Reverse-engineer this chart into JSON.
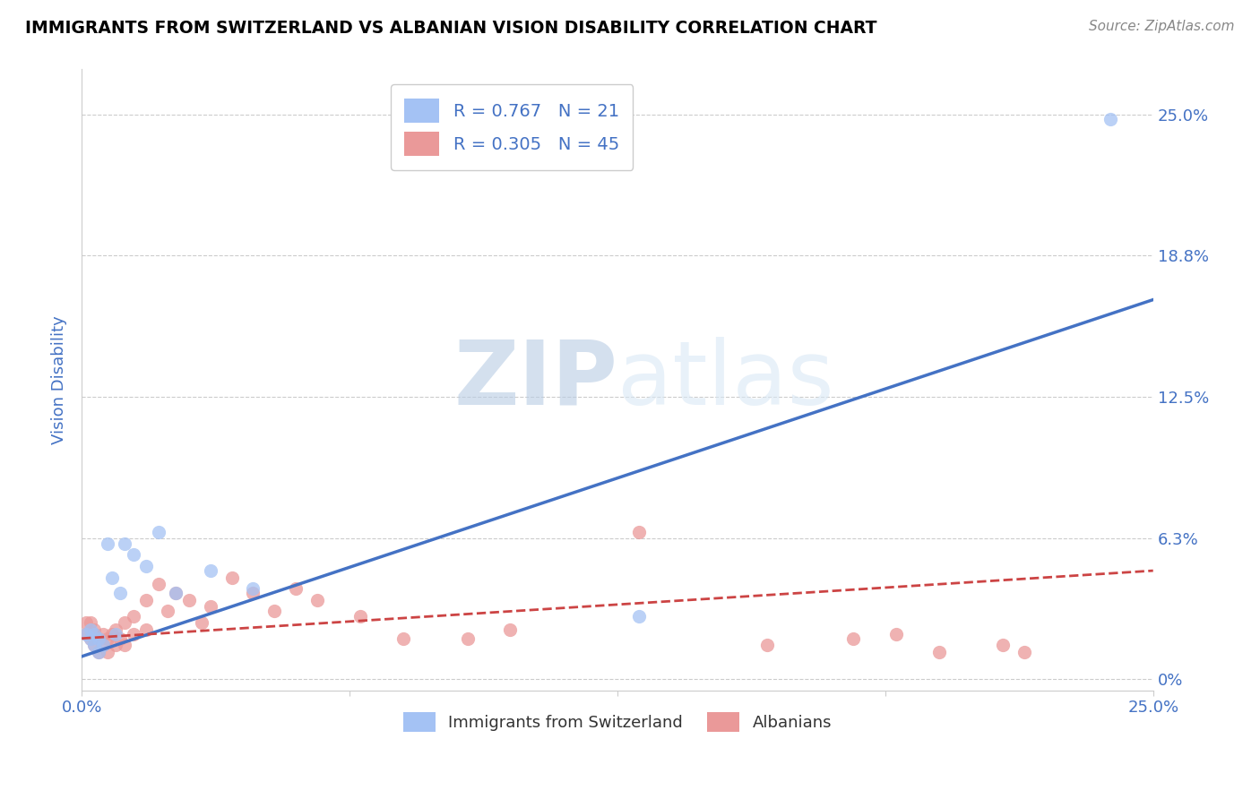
{
  "title": "IMMIGRANTS FROM SWITZERLAND VS ALBANIAN VISION DISABILITY CORRELATION CHART",
  "source_text": "Source: ZipAtlas.com",
  "ylabel": "Vision Disability",
  "watermark_zip": "ZIP",
  "watermark_atlas": "atlas",
  "xlim": [
    0.0,
    0.25
  ],
  "ylim": [
    -0.005,
    0.27
  ],
  "yticks": [
    0.0,
    0.0625,
    0.125,
    0.1875,
    0.25
  ],
  "ytick_labels": [
    "0%",
    "6.3%",
    "12.5%",
    "18.8%",
    "25.0%"
  ],
  "xticks": [
    0.0,
    0.0625,
    0.125,
    0.1875,
    0.25
  ],
  "xtick_labels": [
    "0.0%",
    "",
    "",
    "",
    "25.0%"
  ],
  "blue_scatter_color": "#a4c2f4",
  "pink_scatter_color": "#ea9999",
  "blue_line_color": "#4472c4",
  "pink_line_color": "#cc4444",
  "legend_blue_R": "R = 0.767",
  "legend_blue_N": "N = 21",
  "legend_pink_R": "R = 0.305",
  "legend_pink_N": "N = 45",
  "legend_label_blue": "Immigrants from Switzerland",
  "legend_label_pink": "Albanians",
  "blue_scatter_x": [
    0.001,
    0.002,
    0.002,
    0.003,
    0.003,
    0.004,
    0.004,
    0.005,
    0.006,
    0.007,
    0.008,
    0.009,
    0.01,
    0.012,
    0.015,
    0.018,
    0.022,
    0.03,
    0.04,
    0.13,
    0.24
  ],
  "blue_scatter_y": [
    0.02,
    0.018,
    0.022,
    0.015,
    0.02,
    0.012,
    0.018,
    0.015,
    0.06,
    0.045,
    0.02,
    0.038,
    0.06,
    0.055,
    0.05,
    0.065,
    0.038,
    0.048,
    0.04,
    0.028,
    0.248
  ],
  "pink_scatter_x": [
    0.001,
    0.001,
    0.002,
    0.002,
    0.003,
    0.003,
    0.003,
    0.004,
    0.004,
    0.005,
    0.005,
    0.006,
    0.006,
    0.007,
    0.008,
    0.008,
    0.009,
    0.01,
    0.01,
    0.012,
    0.012,
    0.015,
    0.015,
    0.018,
    0.02,
    0.022,
    0.025,
    0.028,
    0.03,
    0.035,
    0.04,
    0.045,
    0.05,
    0.055,
    0.065,
    0.075,
    0.09,
    0.1,
    0.13,
    0.16,
    0.18,
    0.19,
    0.2,
    0.215,
    0.22
  ],
  "pink_scatter_y": [
    0.025,
    0.02,
    0.018,
    0.025,
    0.015,
    0.02,
    0.022,
    0.012,
    0.018,
    0.015,
    0.02,
    0.012,
    0.018,
    0.02,
    0.015,
    0.022,
    0.018,
    0.015,
    0.025,
    0.02,
    0.028,
    0.035,
    0.022,
    0.042,
    0.03,
    0.038,
    0.035,
    0.025,
    0.032,
    0.045,
    0.038,
    0.03,
    0.04,
    0.035,
    0.028,
    0.018,
    0.018,
    0.022,
    0.065,
    0.015,
    0.018,
    0.02,
    0.012,
    0.015,
    0.012
  ],
  "blue_line_x0": 0.0,
  "blue_line_y0": 0.01,
  "blue_line_x1": 0.25,
  "blue_line_y1": 0.168,
  "pink_line_x0": 0.0,
  "pink_line_y0": 0.018,
  "pink_line_x1": 0.25,
  "pink_line_y1": 0.048,
  "grid_color": "#cccccc",
  "background_color": "#ffffff",
  "title_color": "#000000",
  "tick_label_color": "#4472c4",
  "ylabel_color": "#4472c4"
}
